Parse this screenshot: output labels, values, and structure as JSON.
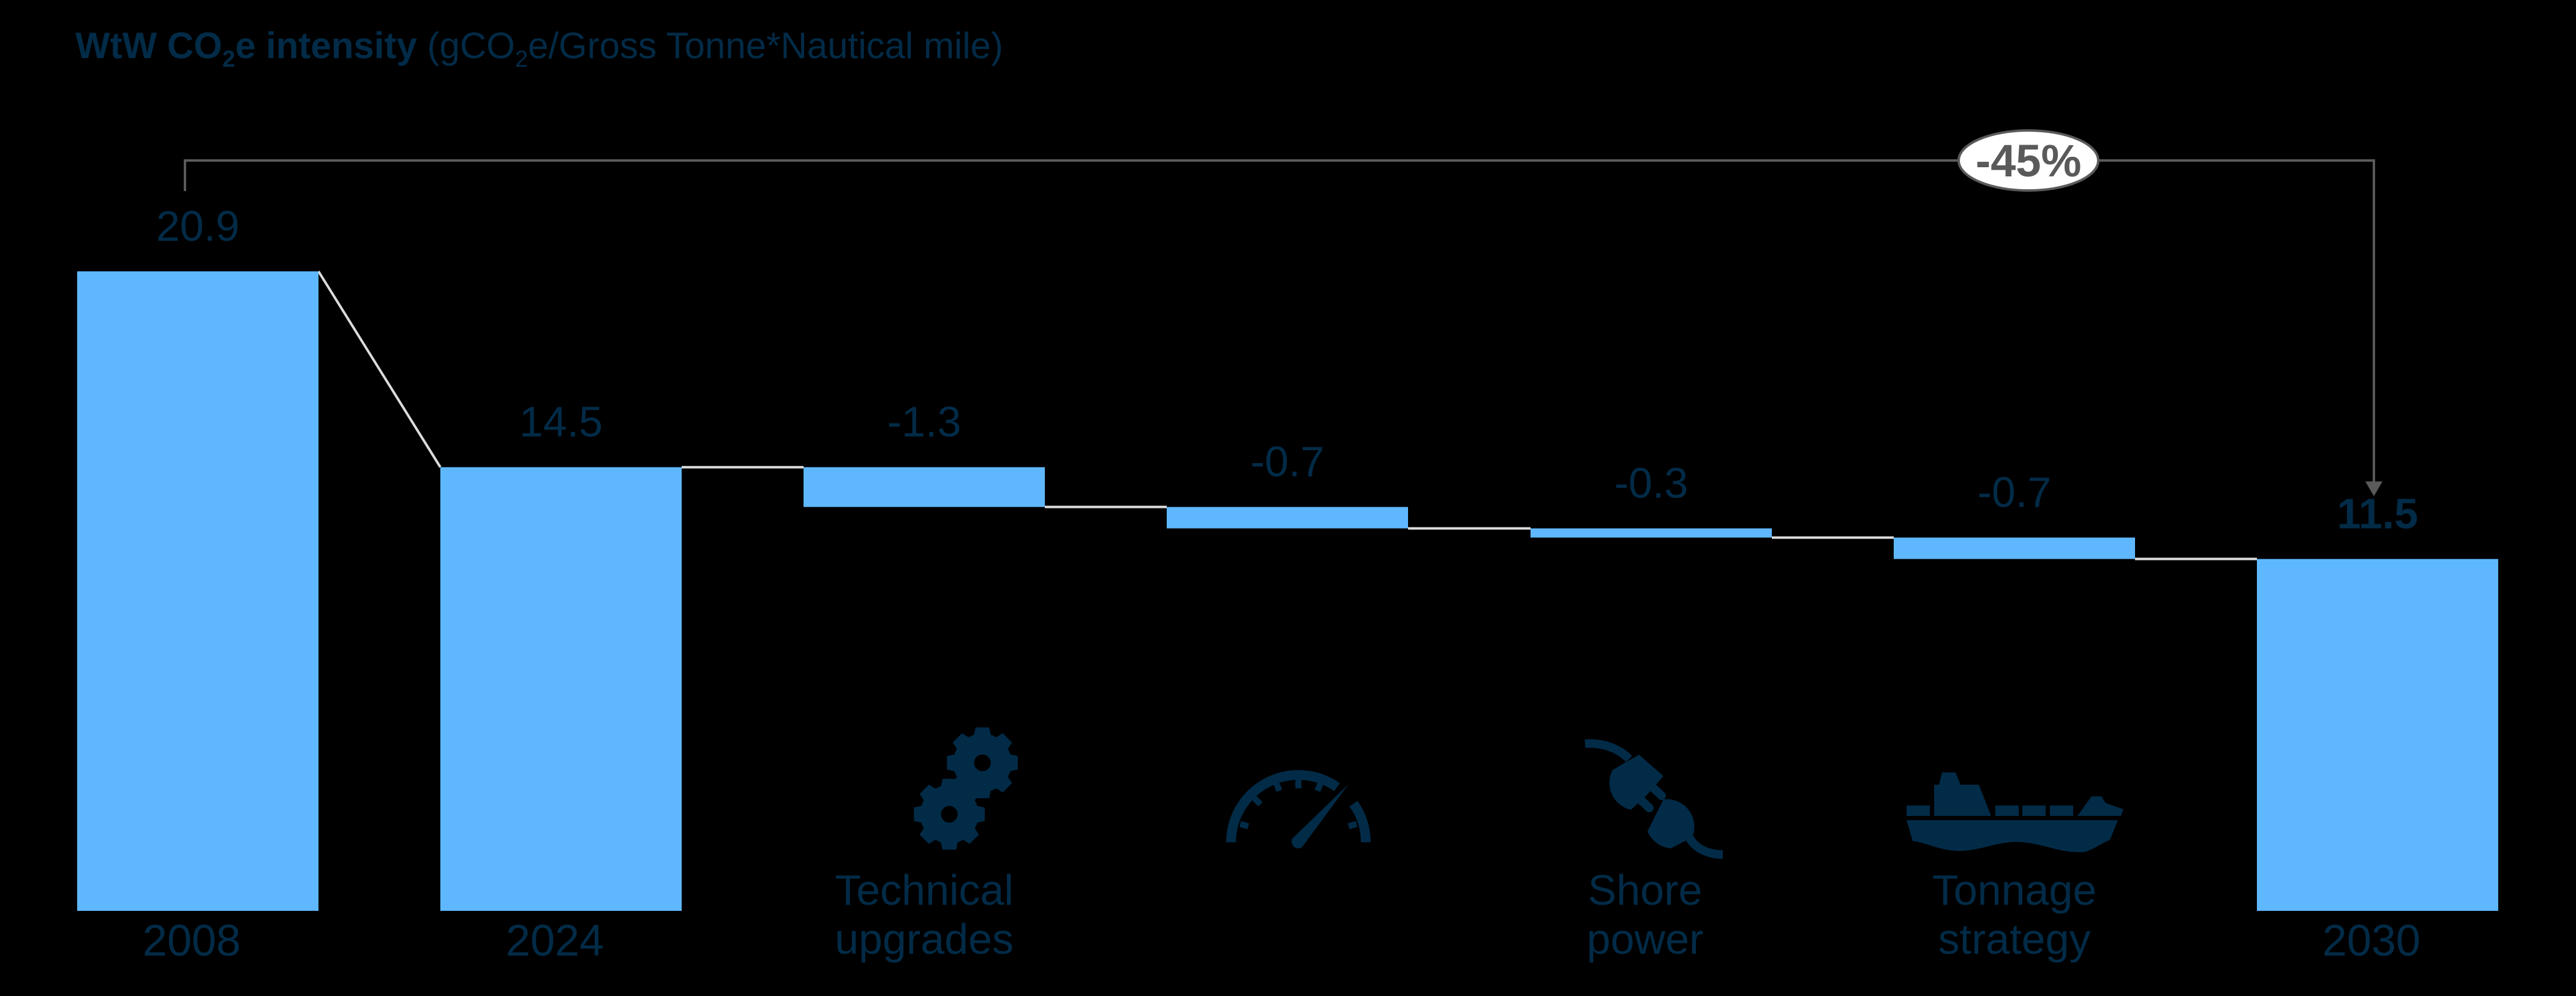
{
  "colors": {
    "background": "#000000",
    "bar": "#5fb8ff",
    "text": "#022b47",
    "connector": "#dcdcdc",
    "bracket": "#5a5a5a",
    "badge_fill": "#ffffff"
  },
  "title": {
    "bold_prefix": "WtW CO",
    "bold_sub": "2",
    "bold_suffix": "e intensity",
    "unit_prefix": " (gCO",
    "unit_sub": "2",
    "unit_suffix": "e/Gross Tonne*Nautical mile)"
  },
  "bracket": {
    "label": "-45%",
    "from": "2008",
    "to": "2030"
  },
  "chart_data": {
    "type": "waterfall",
    "title": "WtW CO2e intensity (gCO2e/Gross Tonne*Nautical mile)",
    "xlabel": "",
    "ylabel": "",
    "grid": false,
    "legend": null,
    "ylim": [
      0,
      22
    ],
    "categories": [
      "2008",
      "2024",
      "Technical upgrades",
      "Speed",
      "Shore power",
      "Tonnage strategy",
      "2030"
    ],
    "bars": [
      {
        "id": "y2008",
        "category": "2008",
        "kind": "total",
        "value": 20.9,
        "label": "20.9",
        "axis_label": "2008",
        "bold": false
      },
      {
        "id": "y2024",
        "category": "2024",
        "kind": "total",
        "value": 14.5,
        "label": "14.5",
        "axis_label": "2024",
        "bold": false
      },
      {
        "id": "technical",
        "category": "Technical upgrades",
        "kind": "delta",
        "value": -1.3,
        "label": "-1.3",
        "axis_label": [
          "Technical",
          "upgrades"
        ],
        "icon": "gears-icon",
        "bold": false
      },
      {
        "id": "speed",
        "category": "Speed",
        "kind": "delta",
        "value": -0.7,
        "label": "-0.7",
        "axis_label": [],
        "icon": "speedometer-icon",
        "bold": false
      },
      {
        "id": "shore",
        "category": "Shore power",
        "kind": "delta",
        "value": -0.3,
        "label": "-0.3",
        "axis_label": [
          "Shore",
          "power"
        ],
        "icon": "plug-icon",
        "bold": false
      },
      {
        "id": "tonnage",
        "category": "Tonnage strategy",
        "kind": "delta",
        "value": -0.7,
        "label": "-0.7",
        "axis_label": [
          "Tonnage",
          "strategy"
        ],
        "icon": "ship-icon",
        "bold": false
      },
      {
        "id": "y2030",
        "category": "2030",
        "kind": "total",
        "value": 11.5,
        "label": "11.5",
        "axis_label": "2030",
        "bold": true
      }
    ],
    "annotations": [
      {
        "type": "bracket",
        "from": "2008",
        "to": "2030",
        "text": "-45%"
      }
    ]
  }
}
